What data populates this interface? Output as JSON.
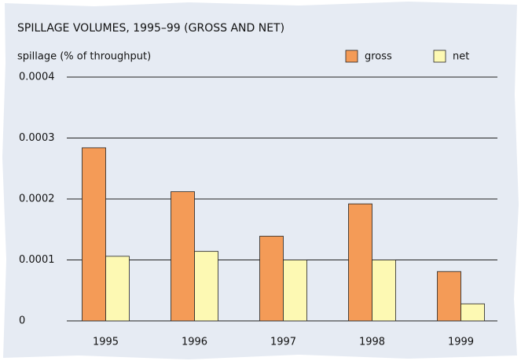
{
  "chart_data": {
    "type": "bar",
    "title": "SPILLAGE VOLUMES, 1995–99 (GROSS AND NET)",
    "y_label": "spillage (% of throughput)",
    "categories": [
      "1995",
      "1996",
      "1997",
      "1998",
      "1999"
    ],
    "series": [
      {
        "name": "gross",
        "color": "#f49b57",
        "values": [
          0.000284,
          0.000212,
          0.000139,
          0.000192,
          8.1e-05
        ]
      },
      {
        "name": "net",
        "color": "#fdf9b3",
        "values": [
          0.000106,
          0.000114,
          0.0001,
          0.0001,
          2.8e-05
        ]
      }
    ],
    "ylim": [
      0,
      0.0004
    ],
    "yticks": [
      0,
      0.0001,
      0.0002,
      0.0003,
      0.0004
    ],
    "grid": true,
    "legend": "top-right"
  }
}
